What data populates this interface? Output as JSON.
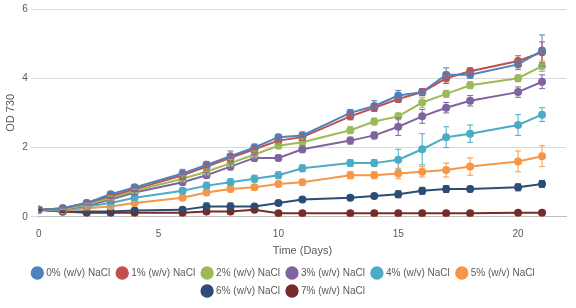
{
  "chart_data": {
    "type": "line",
    "x_label": "Time (Days)",
    "y_label": "OD 730",
    "x": [
      0,
      1,
      2,
      3,
      4,
      6,
      7,
      8,
      9,
      10,
      11,
      13,
      14,
      15,
      16,
      17,
      18,
      20,
      21
    ],
    "xlim": [
      0,
      22
    ],
    "xticks": [
      0,
      5,
      10,
      15,
      20
    ],
    "ylim": [
      0,
      6
    ],
    "yticks": [
      0,
      2,
      4,
      6
    ],
    "grid": true,
    "legend": "bottom",
    "marker": "circle",
    "series": [
      {
        "name": "0% (w/v) NaCl",
        "color": "#4f81bd",
        "values": [
          0.2,
          0.25,
          0.4,
          0.65,
          0.85,
          1.25,
          1.5,
          1.75,
          2.0,
          2.3,
          2.35,
          3.0,
          3.2,
          3.5,
          3.6,
          4.1,
          4.1,
          4.4,
          4.8
        ],
        "errors": [
          0.02,
          0.03,
          0.05,
          0.08,
          0.08,
          0.12,
          0.1,
          0.15,
          0.1,
          0.08,
          0.1,
          0.1,
          0.15,
          0.15,
          0.1,
          0.2,
          0.1,
          0.15,
          0.45
        ]
      },
      {
        "name": "1% (w/v) NaCl",
        "color": "#c0504d",
        "values": [
          0.2,
          0.25,
          0.4,
          0.6,
          0.8,
          1.2,
          1.45,
          1.7,
          1.95,
          2.2,
          2.3,
          2.9,
          3.15,
          3.4,
          3.6,
          4.0,
          4.2,
          4.5,
          4.75
        ],
        "errors": [
          0.02,
          0.03,
          0.05,
          0.05,
          0.05,
          0.1,
          0.1,
          0.1,
          0.1,
          0.08,
          0.1,
          0.1,
          0.1,
          0.1,
          0.1,
          0.15,
          0.1,
          0.15,
          0.3
        ]
      },
      {
        "name": "2% (w/v) NaCl",
        "color": "#9bbb59",
        "values": [
          0.2,
          0.22,
          0.35,
          0.55,
          0.75,
          1.1,
          1.3,
          1.55,
          1.8,
          2.05,
          2.15,
          2.5,
          2.75,
          2.9,
          3.3,
          3.55,
          3.8,
          4.0,
          4.35
        ],
        "errors": [
          0.02,
          0.03,
          0.04,
          0.05,
          0.05,
          0.08,
          0.08,
          0.1,
          0.1,
          0.08,
          0.1,
          0.1,
          0.1,
          0.1,
          0.15,
          0.1,
          0.1,
          0.1,
          0.15
        ]
      },
      {
        "name": "3% (w/v) NaCl",
        "color": "#8064a2",
        "values": [
          0.2,
          0.22,
          0.32,
          0.5,
          0.7,
          1.0,
          1.2,
          1.45,
          1.7,
          1.7,
          1.95,
          2.2,
          2.35,
          2.6,
          2.9,
          3.15,
          3.35,
          3.6,
          3.9
        ],
        "errors": [
          0.02,
          0.03,
          0.04,
          0.05,
          0.05,
          0.08,
          0.08,
          0.1,
          0.1,
          0.08,
          0.1,
          0.1,
          0.1,
          0.25,
          0.2,
          0.15,
          0.15,
          0.15,
          0.2
        ]
      },
      {
        "name": "4% (w/v) NaCl",
        "color": "#4bacc6",
        "values": [
          0.2,
          0.2,
          0.3,
          0.4,
          0.55,
          0.75,
          0.9,
          1.0,
          1.1,
          1.2,
          1.4,
          1.55,
          1.55,
          1.65,
          1.95,
          2.3,
          2.4,
          2.65,
          2.95
        ],
        "errors": [
          0.02,
          0.02,
          0.03,
          0.04,
          0.05,
          0.08,
          0.1,
          0.1,
          0.1,
          0.1,
          0.1,
          0.1,
          0.1,
          0.3,
          0.45,
          0.3,
          0.25,
          0.3,
          0.2
        ]
      },
      {
        "name": "5% (w/v) NaCl",
        "color": "#f79646",
        "values": [
          0.2,
          0.18,
          0.25,
          0.3,
          0.4,
          0.55,
          0.7,
          0.8,
          0.85,
          0.95,
          1.0,
          1.2,
          1.2,
          1.25,
          1.3,
          1.35,
          1.45,
          1.6,
          1.75
        ],
        "errors": [
          0.02,
          0.02,
          0.03,
          0.03,
          0.04,
          0.05,
          0.08,
          0.08,
          0.08,
          0.08,
          0.08,
          0.1,
          0.1,
          0.15,
          0.15,
          0.2,
          0.25,
          0.3,
          0.3
        ]
      },
      {
        "name": "6% (w/v) NaCl",
        "color": "#2c4d75",
        "values": [
          0.2,
          0.15,
          0.15,
          0.15,
          0.18,
          0.2,
          0.3,
          0.3,
          0.3,
          0.4,
          0.5,
          0.55,
          0.6,
          0.65,
          0.75,
          0.8,
          0.8,
          0.85,
          0.95
        ],
        "errors": [
          0.02,
          0.02,
          0.02,
          0.02,
          0.03,
          0.05,
          0.1,
          0.1,
          0.05,
          0.05,
          0.05,
          0.05,
          0.05,
          0.1,
          0.1,
          0.1,
          0.08,
          0.1,
          0.1
        ]
      },
      {
        "name": "7% (w/v) NaCl",
        "color": "#772c2a",
        "values": [
          0.2,
          0.15,
          0.12,
          0.12,
          0.12,
          0.12,
          0.15,
          0.15,
          0.2,
          0.1,
          0.1,
          0.1,
          0.1,
          0.1,
          0.1,
          0.1,
          0.1,
          0.12,
          0.12
        ],
        "errors": [
          0.02,
          0.02,
          0.02,
          0.02,
          0.02,
          0.02,
          0.02,
          0.02,
          0.02,
          0.02,
          0.02,
          0.02,
          0.02,
          0.02,
          0.02,
          0.02,
          0.02,
          0.02,
          0.02
        ]
      }
    ]
  }
}
